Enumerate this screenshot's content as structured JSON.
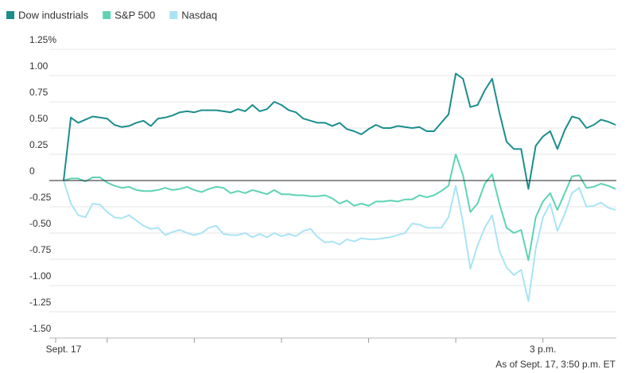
{
  "chart_data": {
    "type": "line",
    "note": "As of Sept. 17, 3:50 p.m. ET",
    "categories": [
      "Sept. 17",
      null,
      null,
      null,
      null,
      null,
      null,
      null,
      null,
      null,
      null,
      null,
      null,
      null,
      null,
      null,
      null,
      null,
      null,
      null,
      null,
      null,
      null,
      null,
      null,
      null,
      null,
      null,
      null,
      null,
      null,
      null,
      null,
      null,
      null,
      null,
      null,
      null,
      null,
      null,
      null,
      null,
      null,
      null,
      null,
      null,
      null,
      null,
      null,
      null,
      null,
      null,
      null,
      null,
      null,
      null,
      null,
      null,
      null,
      null,
      null,
      null,
      null,
      null,
      null,
      null,
      "3 p.m.",
      null,
      null,
      null,
      null,
      null,
      null,
      null,
      null,
      null,
      null
    ],
    "series": [
      {
        "name": "Dow industrials",
        "color": "#1b8e8c",
        "values": [
          0,
          0.6,
          0.55,
          0.58,
          0.61,
          0.6,
          0.59,
          0.53,
          0.51,
          0.52,
          0.55,
          0.57,
          0.52,
          0.59,
          0.6,
          0.62,
          0.65,
          0.66,
          0.65,
          0.67,
          0.67,
          0.67,
          0.66,
          0.65,
          0.68,
          0.66,
          0.72,
          0.66,
          0.68,
          0.75,
          0.72,
          0.67,
          0.65,
          0.59,
          0.57,
          0.55,
          0.55,
          0.52,
          0.55,
          0.49,
          0.47,
          0.44,
          0.49,
          0.53,
          0.5,
          0.5,
          0.52,
          0.51,
          0.5,
          0.51,
          0.47,
          0.47,
          0.55,
          0.63,
          1.02,
          0.97,
          0.7,
          0.72,
          0.86,
          0.97,
          0.65,
          0.37,
          0.3,
          0.3,
          -0.08,
          0.33,
          0.42,
          0.47,
          0.3,
          0.48,
          0.61,
          0.59,
          0.5,
          0.53,
          0.58,
          0.56,
          0.53
        ]
      },
      {
        "name": "S&P 500",
        "color": "#5ed3b4",
        "values": [
          0,
          0.02,
          0.02,
          -0.01,
          0.03,
          0.03,
          -0.02,
          -0.05,
          -0.07,
          -0.06,
          -0.09,
          -0.1,
          -0.1,
          -0.09,
          -0.07,
          -0.09,
          -0.08,
          -0.06,
          -0.09,
          -0.11,
          -0.08,
          -0.06,
          -0.07,
          -0.12,
          -0.1,
          -0.12,
          -0.09,
          -0.11,
          -0.13,
          -0.09,
          -0.13,
          -0.13,
          -0.14,
          -0.14,
          -0.15,
          -0.15,
          -0.14,
          -0.17,
          -0.22,
          -0.19,
          -0.24,
          -0.22,
          -0.24,
          -0.2,
          -0.2,
          -0.19,
          -0.2,
          -0.18,
          -0.18,
          -0.14,
          -0.16,
          -0.14,
          -0.1,
          -0.05,
          0.25,
          0.05,
          -0.3,
          -0.22,
          -0.03,
          0.06,
          -0.22,
          -0.45,
          -0.5,
          -0.47,
          -0.76,
          -0.35,
          -0.2,
          -0.12,
          -0.28,
          -0.12,
          0.04,
          0.05,
          -0.07,
          -0.06,
          -0.03,
          -0.05,
          -0.08
        ]
      },
      {
        "name": "Nasdaq",
        "color": "#a8e4f5",
        "values": [
          0,
          -0.22,
          -0.33,
          -0.35,
          -0.22,
          -0.23,
          -0.3,
          -0.35,
          -0.36,
          -0.33,
          -0.38,
          -0.43,
          -0.46,
          -0.45,
          -0.52,
          -0.49,
          -0.47,
          -0.5,
          -0.52,
          -0.5,
          -0.45,
          -0.43,
          -0.51,
          -0.52,
          -0.52,
          -0.5,
          -0.54,
          -0.51,
          -0.54,
          -0.5,
          -0.53,
          -0.51,
          -0.53,
          -0.48,
          -0.46,
          -0.54,
          -0.59,
          -0.58,
          -0.61,
          -0.56,
          -0.58,
          -0.55,
          -0.56,
          -0.56,
          -0.55,
          -0.54,
          -0.52,
          -0.5,
          -0.41,
          -0.42,
          -0.45,
          -0.45,
          -0.45,
          -0.35,
          -0.05,
          -0.4,
          -0.84,
          -0.62,
          -0.45,
          -0.33,
          -0.67,
          -0.83,
          -0.9,
          -0.85,
          -1.15,
          -0.65,
          -0.35,
          -0.22,
          -0.48,
          -0.32,
          -0.12,
          -0.07,
          -0.25,
          -0.24,
          -0.21,
          -0.26,
          -0.28
        ]
      }
    ],
    "ylim": [
      -1.5,
      1.25
    ],
    "yticks": [
      {
        "value": 1.25,
        "label": "1.25%"
      },
      {
        "value": 1,
        "label": "1.00"
      },
      0.75,
      {
        "value": 0.5,
        "label": "0.50"
      },
      0.25,
      0,
      -0.25,
      {
        "value": -0.5,
        "label": "-0.50"
      },
      -0.75,
      {
        "value": -1,
        "label": "-1.00"
      },
      -1.25,
      {
        "value": -1.5,
        "label": "-1.50"
      }
    ],
    "grid": true
  }
}
